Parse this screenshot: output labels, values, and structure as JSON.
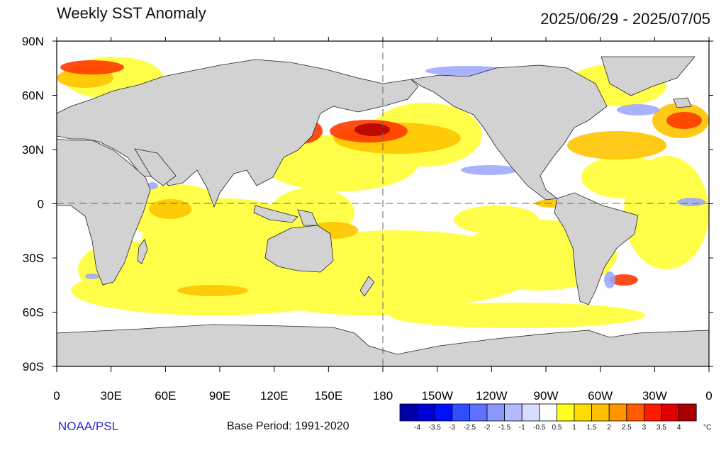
{
  "header": {
    "title": "Weekly SST Anomaly",
    "date_range": "2025/06/29 - 2025/07/05"
  },
  "footer": {
    "credit": "NOAA/PSL",
    "base_period": "Base Period: 1991-2020"
  },
  "map": {
    "projection": "equirectangular",
    "lon_range": [
      0,
      360
    ],
    "lat_range": [
      -90,
      90
    ],
    "lat_ticks": [
      {
        "value": 90,
        "label": "90N"
      },
      {
        "value": 60,
        "label": "60N"
      },
      {
        "value": 30,
        "label": "30N"
      },
      {
        "value": 0,
        "label": "0"
      },
      {
        "value": -30,
        "label": "30S"
      },
      {
        "value": -60,
        "label": "60S"
      },
      {
        "value": -90,
        "label": "90S"
      }
    ],
    "lon_ticks": [
      {
        "value": 0,
        "label": "0"
      },
      {
        "value": 30,
        "label": "30E"
      },
      {
        "value": 60,
        "label": "60E"
      },
      {
        "value": 90,
        "label": "90E"
      },
      {
        "value": 120,
        "label": "120E"
      },
      {
        "value": 150,
        "label": "150E"
      },
      {
        "value": 180,
        "label": "180"
      },
      {
        "value": 210,
        "label": "150W"
      },
      {
        "value": 240,
        "label": "120W"
      },
      {
        "value": 270,
        "label": "90W"
      },
      {
        "value": 300,
        "label": "60W"
      },
      {
        "value": 330,
        "label": "30W"
      },
      {
        "value": 360,
        "label": "0"
      }
    ],
    "reference_lines": [
      "equator",
      "dateline"
    ],
    "land_color": "#d2d2d2",
    "ocean_base_color": "#ffffff"
  },
  "colorbar": {
    "unit": "°C",
    "tick_labels": [
      "-4",
      "-3.5",
      "-3",
      "-2.5",
      "-2",
      "-1.5",
      "-1",
      "-0.5",
      "0.5",
      "1",
      "1.5",
      "2",
      "2.5",
      "3",
      "3.5",
      "4"
    ],
    "colors": [
      "#0000a8",
      "#0000d8",
      "#0010ff",
      "#3050ff",
      "#6070ff",
      "#8c96ff",
      "#b4baff",
      "#d8dcff",
      "#ffffff",
      "#ffff20",
      "#ffdc00",
      "#ffbe00",
      "#ff9600",
      "#ff5a00",
      "#ff1a00",
      "#e00000",
      "#a80000"
    ]
  }
}
